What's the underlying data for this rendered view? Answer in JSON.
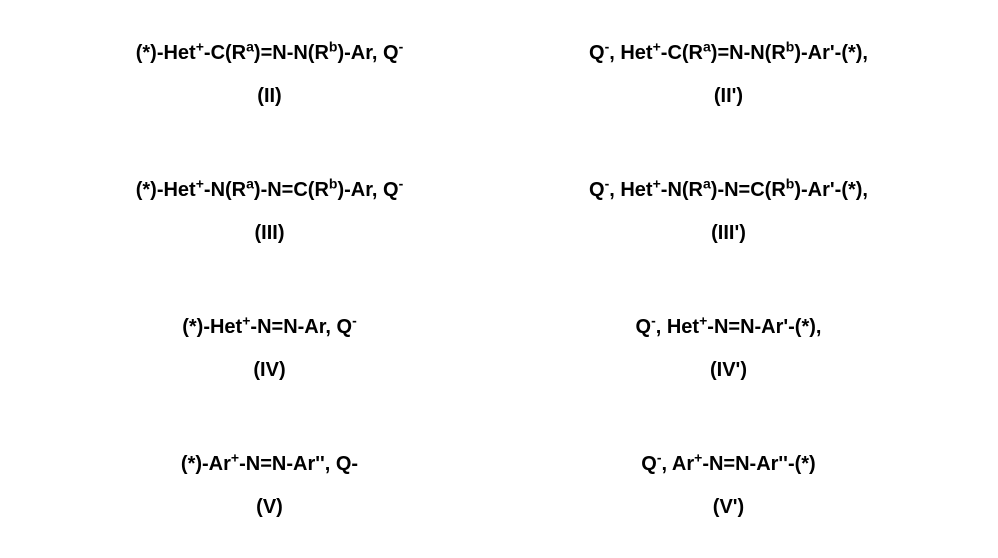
{
  "title_fontsize": 20,
  "label_fontsize": 20,
  "font_family": "Arial",
  "font_weight": "bold",
  "background_color": "#ffffff",
  "text_color": "#000000",
  "grid": {
    "rows": 4,
    "cols": 2,
    "row_gap": 30,
    "col_gap": 40
  },
  "cells": [
    {
      "formula_html": "(*)-Het<sup>+</sup>-C(R<sup>a</sup>)=N-N(R<sup>b</sup>)-Ar, Q<sup>-</sup>",
      "label": "(II)"
    },
    {
      "formula_html": "Q<sup>-</sup>, Het<sup>+</sup>-C(R<sup>a</sup>)=N-N(R<sup>b</sup>)-Ar'-(*),",
      "label": "(II')"
    },
    {
      "formula_html": "(*)-Het<sup>+</sup>-N(R<sup>a</sup>)-N=C(R<sup>b</sup>)-Ar, Q<sup>-</sup>",
      "label": "(III)"
    },
    {
      "formula_html": "Q<sup>-</sup>, Het<sup>+</sup>-N(R<sup>a</sup>)-N=C(R<sup>b</sup>)-Ar'-(*),",
      "label": "(III')"
    },
    {
      "formula_html": "(*)-Het<sup>+</sup>-N=N-Ar, Q<sup>-</sup>",
      "label": "(IV)"
    },
    {
      "formula_html": "Q<sup>-</sup>, Het<sup>+</sup>-N=N-Ar'-(*),",
      "label": "(IV')"
    },
    {
      "formula_html": "(*)-Ar<sup>+</sup>-N=N-Ar'', Q-",
      "label": "(V)"
    },
    {
      "formula_html": "Q<sup>-</sup>, Ar<sup>+</sup>-N=N-Ar''-(*)",
      "label": "(V')"
    }
  ]
}
